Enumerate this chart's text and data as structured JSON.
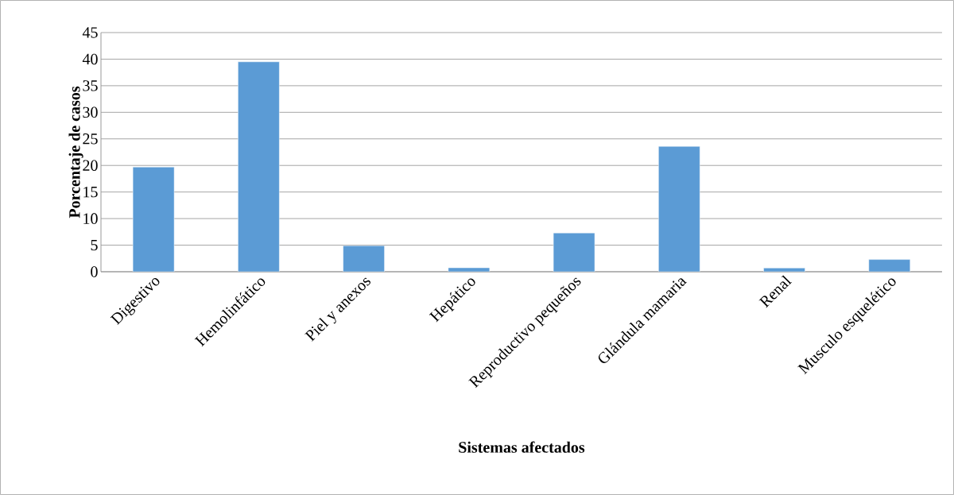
{
  "chart_data": {
    "type": "bar",
    "xlabel": "Sistemas afectados",
    "ylabel": "Porcentaje de casos",
    "categories": [
      "Digestivo",
      "Hemolinfático",
      "Piel y anexos",
      "Hepático",
      "Reproductivo pequeños",
      "Glándula mamaria",
      "Renal",
      "Musculo esquelético"
    ],
    "values": [
      19.7,
      39.5,
      4.9,
      0.75,
      7.3,
      23.6,
      0.7,
      2.3
    ],
    "color": "#5b9bd5",
    "ylim": [
      0,
      45
    ],
    "yticks": [
      0,
      5,
      10,
      15,
      20,
      25,
      30,
      35,
      40,
      45
    ],
    "grid": "y"
  }
}
